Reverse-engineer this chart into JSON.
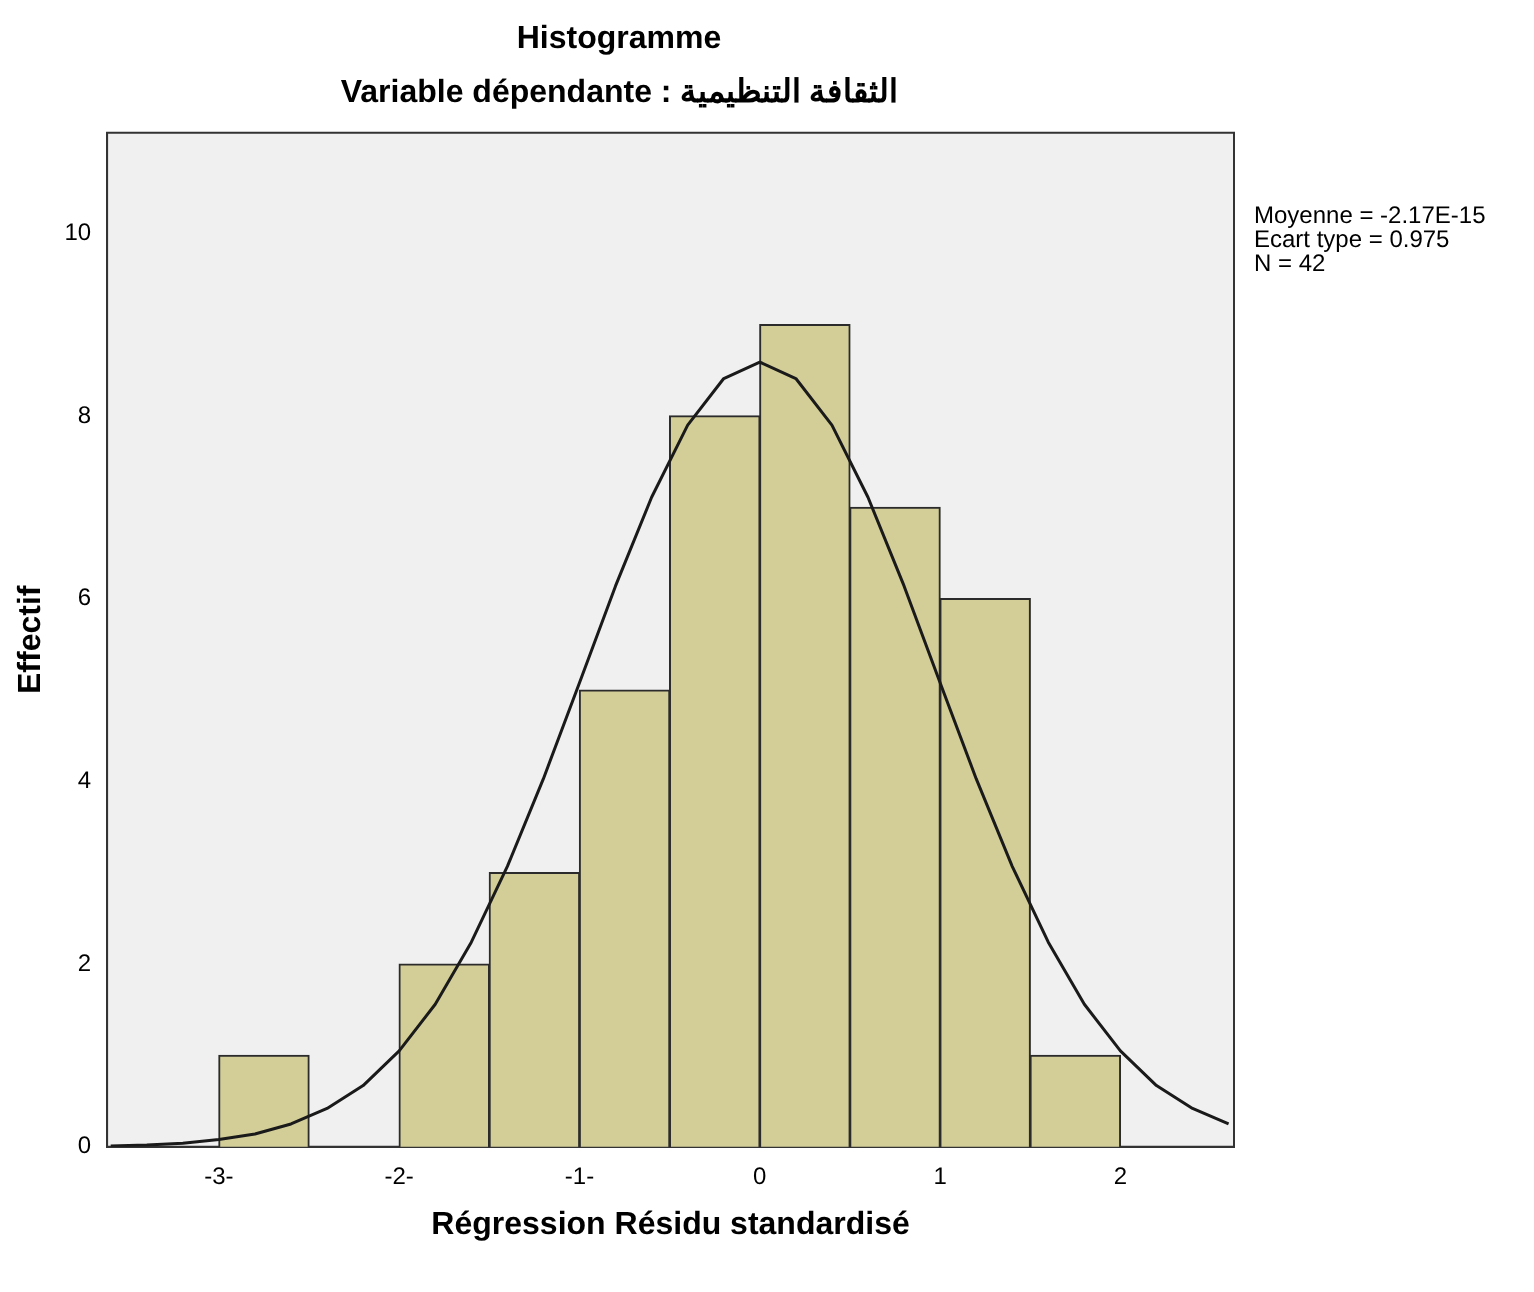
{
  "chart_data": {
    "type": "histogram",
    "title": "Histogramme",
    "subtitle": "Variable dépendante : الثقافة التنظيمية",
    "xlabel": "Régression Résidu standardisé",
    "ylabel": "Effectif",
    "bins": [
      -3,
      -2.5,
      -2,
      -1.5,
      -1,
      -0.5,
      0,
      0.5,
      1,
      1.5,
      2
    ],
    "values": [
      1,
      0,
      2,
      3,
      5,
      8,
      9,
      7,
      6,
      1
    ],
    "color": "#d3ce97",
    "series": [
      {
        "type": "line",
        "color": "#1a1a1a",
        "x": [
          -3.6,
          -3.4,
          -3.2,
          -3.0,
          -2.8,
          -2.6,
          -2.4,
          -2.2,
          -2.0,
          -1.8,
          -1.6,
          -1.4,
          -1.2,
          -1.0,
          -0.8,
          -0.6,
          -0.4,
          -0.2,
          0,
          0.2,
          0.4,
          0.6,
          0.8,
          1.0,
          1.2,
          1.4,
          1.6,
          1.8,
          2.0,
          2.2,
          2.4,
          2.6
        ],
        "values": [
          0.01,
          0.02,
          0.04,
          0.08,
          0.14,
          0.25,
          0.42,
          0.67,
          1.05,
          1.56,
          2.24,
          3.07,
          4.03,
          5.08,
          6.14,
          7.11,
          7.9,
          8.41,
          8.59,
          8.41,
          7.9,
          7.11,
          6.14,
          5.08,
          4.03,
          3.07,
          2.24,
          1.56,
          1.05,
          0.67,
          0.42,
          0.25
        ]
      }
    ],
    "xlim": [
      -3.62,
      2.63
    ],
    "ylim": [
      0,
      11.1
    ],
    "xticks": [
      {
        "value": -3,
        "label": "-3-"
      },
      {
        "value": -2,
        "label": "-2-"
      },
      {
        "value": -1,
        "label": "-1-"
      },
      0,
      1,
      2
    ],
    "yticks": [
      0,
      2,
      4,
      6,
      8,
      10
    ],
    "grid": false,
    "legend": false,
    "annotations": [
      "Moyenne = -2.17E-15",
      "Ecart type = 0.975",
      "N = 42"
    ]
  }
}
